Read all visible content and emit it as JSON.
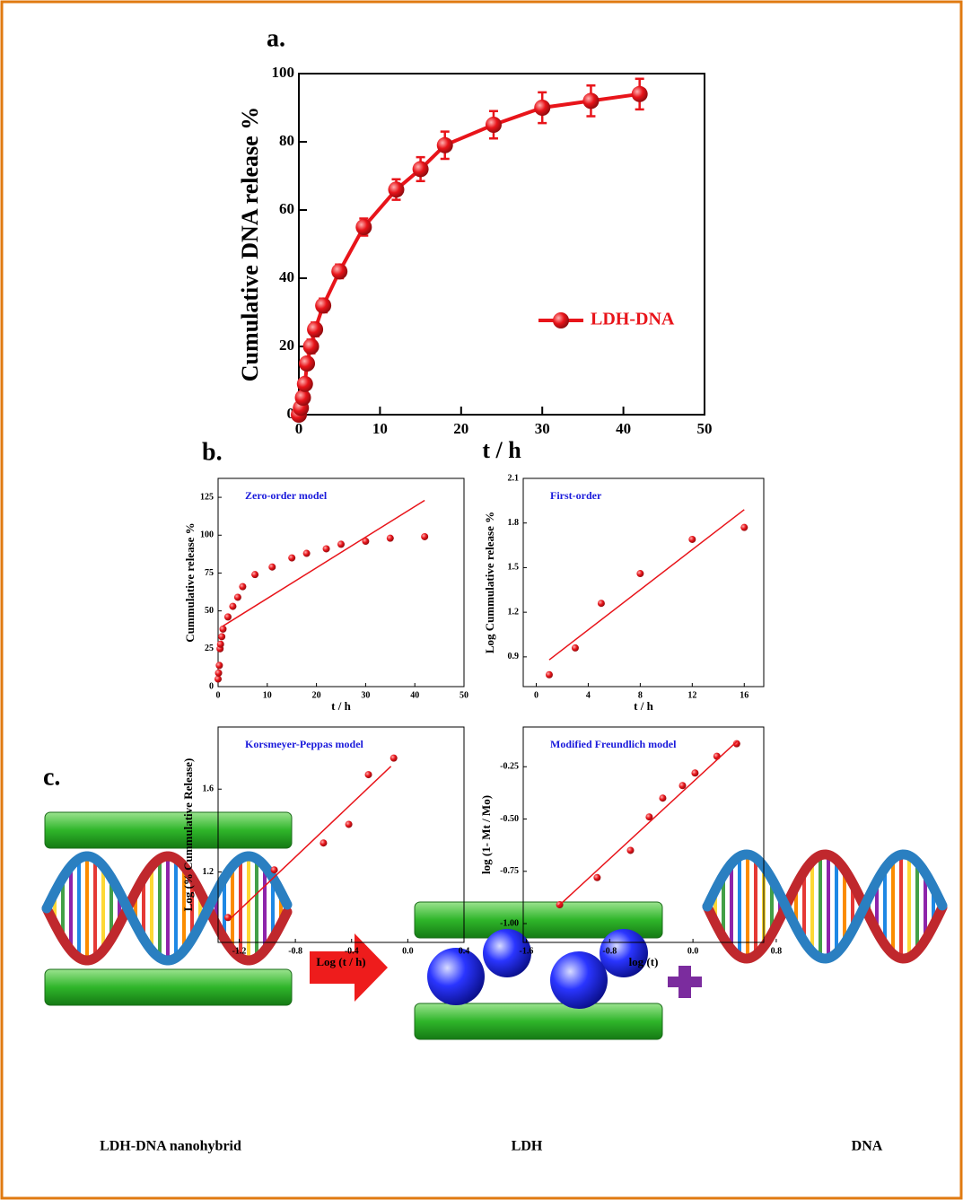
{
  "chart_data": [
    {
      "type": "line",
      "panel_label": "a.",
      "xlabel": "t / h",
      "ylabel": "Cumulative DNA release %",
      "xlim": [
        0,
        50
      ],
      "ylim": [
        0,
        100
      ],
      "xticks": [
        0,
        10,
        20,
        30,
        40,
        50
      ],
      "yticks": [
        0,
        20,
        40,
        60,
        80,
        100
      ],
      "legend": "center right",
      "series": [
        {
          "name": "LDH-DNA",
          "color": "#e8141a",
          "style": "line-markers",
          "x": [
            0,
            0.25,
            0.5,
            0.75,
            1,
            1.5,
            2,
            3,
            5,
            8,
            12,
            15,
            18,
            24,
            30,
            36,
            42
          ],
          "values": [
            0,
            2,
            5,
            9,
            15,
            20,
            25,
            32,
            42,
            55,
            66,
            72,
            79,
            85,
            90,
            92,
            94
          ],
          "errors": [
            0.5,
            1,
            1,
            1.5,
            1.5,
            2,
            2,
            2,
            2,
            2.5,
            3,
            3.5,
            4,
            4,
            4.5,
            4.5,
            4.5
          ]
        }
      ]
    },
    {
      "type": "scatter",
      "panel_label": "b.",
      "annotation": "Zero-order model",
      "xlabel": "t / h",
      "ylabel": "Cummulative release %",
      "xlim": [
        0,
        50
      ],
      "ylim": [
        0,
        137.5
      ],
      "xticks": [
        0,
        10,
        20,
        30,
        40,
        50
      ],
      "yticks": [
        0,
        25,
        50,
        75,
        100,
        125
      ],
      "series": [
        {
          "color": "#e8141a",
          "style": "markers",
          "x": [
            0,
            0.1,
            0.25,
            0.4,
            0.5,
            0.75,
            1,
            2,
            3,
            4,
            5,
            7.5,
            11,
            15,
            18,
            22,
            25,
            30,
            35,
            42
          ],
          "values": [
            5,
            9,
            14,
            25,
            28,
            33,
            38,
            46,
            53,
            59,
            66,
            74,
            79,
            85,
            88,
            91,
            94,
            96,
            98,
            99
          ]
        },
        {
          "color": "#e8141a",
          "style": "line",
          "x": [
            1,
            42
          ],
          "values": [
            40,
            123
          ]
        }
      ]
    },
    {
      "type": "scatter",
      "annotation": "First-order",
      "xlabel": "t / h",
      "ylabel": "Log Cummulative release %",
      "xlim": [
        -1,
        17.5
      ],
      "ylim": [
        0.7,
        2.1
      ],
      "xticks": [
        0,
        4,
        8,
        12,
        16
      ],
      "yticks": [
        0.9,
        1.2,
        1.5,
        1.8,
        2.1
      ],
      "series": [
        {
          "color": "#e8141a",
          "style": "markers",
          "x": [
            1,
            3,
            5,
            8,
            12,
            16
          ],
          "values": [
            0.78,
            0.96,
            1.26,
            1.46,
            1.69,
            1.77
          ]
        },
        {
          "color": "#e8141a",
          "style": "line",
          "x": [
            1,
            16
          ],
          "values": [
            0.88,
            1.89
          ]
        }
      ]
    },
    {
      "type": "scatter",
      "annotation": "Korsmeyer-Peppas model",
      "xlabel": "Log (t / h)",
      "ylabel": "Log (% Cummulative Release)",
      "xlim": [
        -1.35,
        0.4
      ],
      "ylim": [
        0.86,
        1.9
      ],
      "xticks": [
        -1.2,
        -0.8,
        -0.4,
        {
          "value": 0,
          "label": "0.0"
        },
        0.4
      ],
      "yticks": [
        1.2,
        1.6
      ],
      "series": [
        {
          "color": "#e8141a",
          "style": "markers",
          "x": [
            -1.28,
            -0.95,
            -0.6,
            -0.42,
            -0.28,
            -0.1
          ],
          "values": [
            0.98,
            1.21,
            1.34,
            1.43,
            1.67,
            1.75
          ]
        },
        {
          "color": "#e8141a",
          "style": "line",
          "x": [
            -1.27,
            -0.12
          ],
          "values": [
            0.97,
            1.71
          ]
        }
      ]
    },
    {
      "type": "scatter",
      "annotation": "Modified Freundlich model",
      "xlabel": "log (t)",
      "ylabel": "log (1- Mt / Mo)",
      "xlim": [
        -1.63,
        0.68
      ],
      "ylim": [
        -1.09,
        -0.06
      ],
      "xticks": [
        -1.6,
        -0.8,
        {
          "value": 0,
          "label": "0.0"
        },
        0.8
      ],
      "yticks": [
        {
          "value": -1,
          "label": "-1.00"
        },
        {
          "value": -0.75,
          "label": "-0.75"
        },
        {
          "value": -0.5,
          "label": "-0.50"
        },
        {
          "value": -0.25,
          "label": "-0.25"
        }
      ],
      "series": [
        {
          "color": "#e8141a",
          "style": "markers",
          "x": [
            -1.28,
            -0.92,
            -0.6,
            -0.42,
            -0.29,
            -0.1,
            0.02,
            0.23,
            0.42
          ],
          "values": [
            -0.91,
            -0.78,
            -0.65,
            -0.49,
            -0.4,
            -0.34,
            -0.28,
            -0.2,
            -0.14
          ]
        },
        {
          "color": "#e8141a",
          "style": "line",
          "x": [
            -1.3,
            0.42
          ],
          "values": [
            -0.92,
            -0.13
          ]
        }
      ]
    }
  ],
  "diagram": {
    "panel_label": "c.",
    "labels": [
      "LDH-DNA nanohybrid",
      "LDH",
      "DNA"
    ]
  }
}
